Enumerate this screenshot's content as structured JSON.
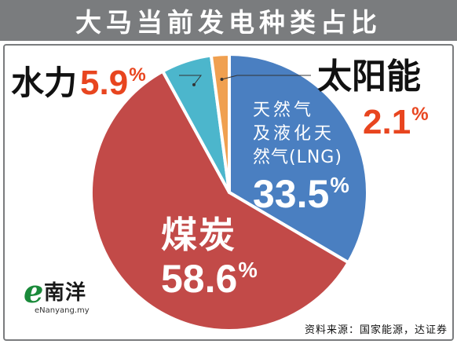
{
  "title": "大马当前发电种类占比",
  "chart_data": {
    "type": "pie",
    "title": "大马当前发电种类占比",
    "slices": [
      {
        "label": "天然气及液化天然气(LNG)",
        "value": 33.5,
        "color": "#4a7fc1"
      },
      {
        "label": "煤炭",
        "value": 58.6,
        "color": "#c24a48"
      },
      {
        "label": "水力",
        "value": 5.9,
        "color": "#4cb6cc"
      },
      {
        "label": "太阳能",
        "value": 2.1,
        "color": "#f0a050"
      }
    ]
  },
  "labels": {
    "lng_line1": "天然气",
    "lng_line2": "及液化天",
    "lng_line3": "然气(LNG)",
    "lng_value": "33.5",
    "coal_name": "煤炭",
    "coal_value": "58.6",
    "hydro_name": "水力",
    "hydro_value": "5.9",
    "solar_name": "太阳能",
    "solar_value": "2.1",
    "percent_sign": "%"
  },
  "logo": {
    "e": "e",
    "chinese": "南洋",
    "english": "eNanyang.my"
  },
  "source": "资料来源：国家能源，达证券",
  "colors": {
    "title_bar": "#7a7c7e",
    "value_accent": "#e8451f",
    "logo_green": "#1a8a3a"
  }
}
